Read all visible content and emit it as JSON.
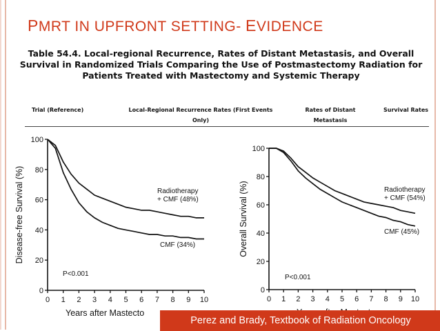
{
  "slide_title": {
    "p": "P",
    "mrt": "MRT IN UPFRONT SETTING",
    "dash": "- ",
    "e": "E",
    "vidence": "VIDENCE"
  },
  "table_title": {
    "line1": "Table 54.4. Local-regional Recurrence, Rates of Distant Metastasis, and Overall",
    "line2": "Survival in Randomized Trials Comparing the Use of Postmastectomy Radiation for",
    "line3": "Patients Treated with Mastectomy and Systemic Therapy"
  },
  "table_headers": {
    "trial": "Trial (Reference)",
    "lrr_line1": "Local-Regional Recurrence Rates (First Events",
    "lrr_line2": "Only)",
    "dm_line1": "Rates of Distant",
    "dm_line2": "Metastasis",
    "survival": "Survival Rates"
  },
  "chart_data": [
    {
      "type": "line",
      "ylabel": "Disease-free Survival (%)",
      "xlabel": "Years after Mastecto",
      "xlim": [
        0,
        10
      ],
      "ylim": [
        0,
        100
      ],
      "x_ticks": [
        "0",
        "1",
        "2",
        "3",
        "4",
        "5",
        "6",
        "7",
        "8",
        "9",
        "10"
      ],
      "y_ticks": [
        "0",
        "20",
        "40",
        "60",
        "80",
        "100"
      ],
      "pvalue": "P<0.001",
      "series": [
        {
          "name": "Radiotherapy + CMF (48%)",
          "label_line1": "Radiotherapy",
          "label_line2": "+ CMF (48%)",
          "x": [
            0,
            0.5,
            1,
            1.5,
            2,
            2.5,
            3,
            3.5,
            4,
            4.5,
            5,
            5.5,
            6,
            6.5,
            7,
            7.5,
            8,
            8.5,
            9,
            9.5,
            10
          ],
          "y": [
            100,
            96,
            85,
            77,
            71,
            67,
            63,
            61,
            59,
            57,
            55,
            54,
            53,
            53,
            52,
            51,
            50,
            49,
            49,
            48,
            48
          ]
        },
        {
          "name": "CMF (34%)",
          "label_line1": "CMF (34%)",
          "label_line2": "",
          "x": [
            0,
            0.5,
            1,
            1.5,
            2,
            2.5,
            3,
            3.5,
            4,
            4.5,
            5,
            5.5,
            6,
            6.5,
            7,
            7.5,
            8,
            8.5,
            9,
            9.5,
            10
          ],
          "y": [
            100,
            94,
            78,
            67,
            58,
            52,
            48,
            45,
            43,
            41,
            40,
            39,
            38,
            37,
            37,
            36,
            36,
            35,
            35,
            34,
            34
          ]
        }
      ]
    },
    {
      "type": "line",
      "ylabel": "Overall Survival (%)",
      "xlabel": "Years after Mastectomy",
      "xlim": [
        0,
        10
      ],
      "ylim": [
        0,
        100
      ],
      "x_ticks": [
        "0",
        "1",
        "2",
        "3",
        "4",
        "5",
        "6",
        "7",
        "8",
        "9",
        "10"
      ],
      "y_ticks": [
        "0",
        "20",
        "40",
        "60",
        "80",
        "100"
      ],
      "pvalue": "P<0.001",
      "series": [
        {
          "name": "Radiotherapy + CMF (54%)",
          "label_line1": "Radiotherapy",
          "label_line2": "+ CMF (54%)",
          "x": [
            0,
            0.5,
            1,
            1.5,
            2,
            2.5,
            3,
            3.5,
            4,
            4.5,
            5,
            5.5,
            6,
            6.5,
            7,
            7.5,
            8,
            8.5,
            9,
            9.5,
            10
          ],
          "y": [
            100,
            100,
            98,
            93,
            87,
            83,
            79,
            76,
            73,
            70,
            68,
            66,
            64,
            62,
            61,
            60,
            59,
            58,
            56,
            55,
            54
          ]
        },
        {
          "name": "CMF (45%)",
          "label_line1": "CMF (45%)",
          "label_line2": "",
          "x": [
            0,
            0.5,
            1,
            1.5,
            2,
            2.5,
            3,
            3.5,
            4,
            4.5,
            5,
            5.5,
            6,
            6.5,
            7,
            7.5,
            8,
            8.5,
            9,
            9.5,
            10
          ],
          "y": [
            100,
            100,
            97,
            91,
            84,
            79,
            75,
            71,
            68,
            65,
            62,
            60,
            58,
            56,
            54,
            52,
            51,
            49,
            48,
            46,
            45
          ]
        }
      ]
    }
  ],
  "footer_text": "Perez and Brady, Textbook of Radiation Oncology"
}
